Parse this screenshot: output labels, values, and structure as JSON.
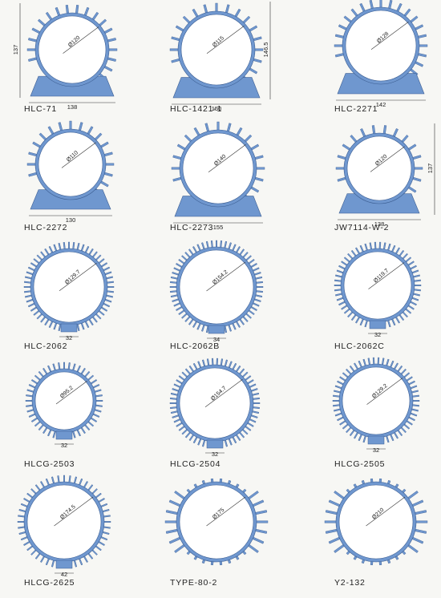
{
  "page": {
    "profile_color": "#6f97cf",
    "outline_color": "#3d5f93",
    "line_color": "#333333",
    "background": "#f7f7f4"
  },
  "items": [
    {
      "model": "HLC-71",
      "diameter": "Ø120",
      "width": "138",
      "height": "137",
      "style": "footed",
      "fins": 26
    },
    {
      "model": "HLC-1421-1",
      "diameter": "Ø115",
      "width": "150",
      "height": "146.5",
      "style": "footed",
      "fins": 24
    },
    {
      "model": "HLC-2271",
      "diameter": "Ø128",
      "width": "142",
      "height": "",
      "style": "footed",
      "fins": 28
    },
    {
      "model": "HLC-2272",
      "diameter": "Ø110",
      "width": "130",
      "height": "",
      "style": "footed",
      "fins": 24
    },
    {
      "model": "HLC-2273",
      "diameter": "Ø140",
      "width": "155",
      "height": "",
      "style": "footed",
      "fins": 24
    },
    {
      "model": "JW7114-W-2",
      "diameter": "Ø120",
      "width": "138",
      "height": "137",
      "style": "footed",
      "fins": 22
    },
    {
      "model": "HLC-2062",
      "diameter": "Ø129.7",
      "width": "32",
      "height": "",
      "style": "finned",
      "fins": 56
    },
    {
      "model": "HLC-2062B",
      "diameter": "Ø154.2",
      "width": "34",
      "height": "",
      "style": "finned",
      "fins": 60
    },
    {
      "model": "HLC-2062C",
      "diameter": "Ø119.7",
      "width": "32",
      "height": "",
      "style": "finned",
      "fins": 54
    },
    {
      "model": "HLCG-2503",
      "diameter": "Ø95.2",
      "width": "32",
      "height": "",
      "style": "finned",
      "fins": 44
    },
    {
      "model": "HLCG-2504",
      "diameter": "Ø154.7",
      "width": "32",
      "height": "",
      "style": "finned",
      "fins": 58
    },
    {
      "model": "HLCG-2505",
      "diameter": "Ø129.2",
      "width": "32",
      "height": "",
      "style": "finned",
      "fins": 54
    },
    {
      "model": "HLCG-2625",
      "diameter": "Ø174.5",
      "width": "42",
      "height": "",
      "style": "finned",
      "fins": 48
    },
    {
      "model": "TYPE-80-2",
      "diameter": "Ø175",
      "width": "",
      "height": "",
      "style": "tapered",
      "fins": 30
    },
    {
      "model": "Y2-132",
      "diameter": "Ø210",
      "width": "",
      "height": "",
      "style": "tapered",
      "fins": 30
    }
  ]
}
